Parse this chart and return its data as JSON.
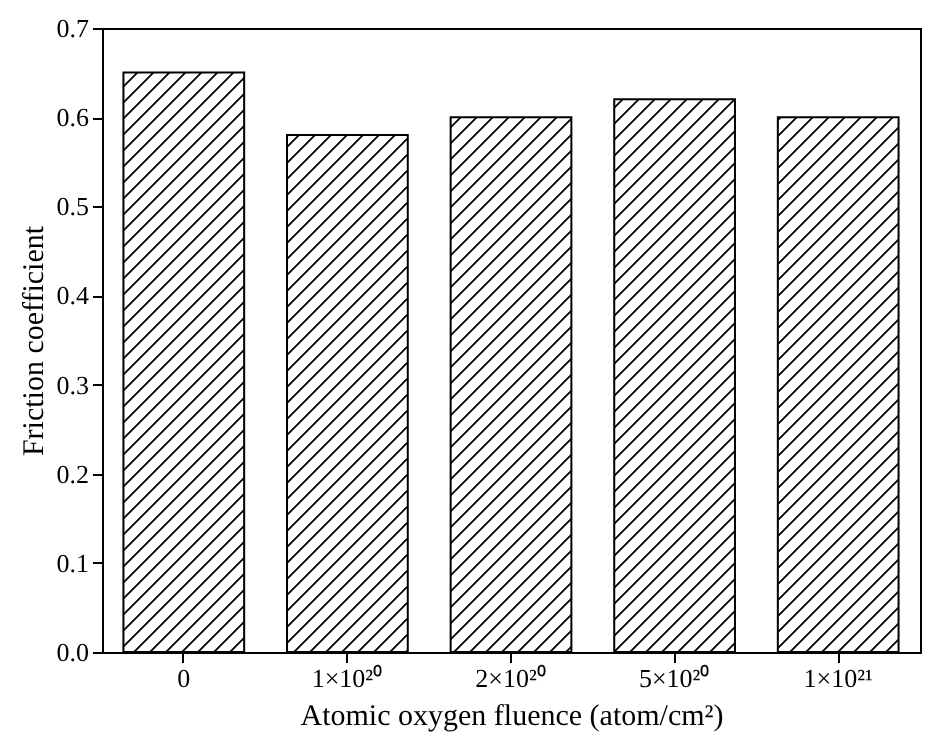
{
  "chart_data": {
    "type": "bar",
    "categories": [
      "0",
      "1×10²⁰",
      "2×10²⁰",
      "5×10²⁰",
      "1×10²¹"
    ],
    "values": [
      0.65,
      0.58,
      0.6,
      0.62,
      0.6
    ],
    "color": "#000000",
    "xlabel": "Atomic oxygen fluence (atom/cm²)",
    "ylabel": "Friction coefficient",
    "ylim": [
      0,
      0.7
    ],
    "yticks": [
      {
        "value": 0,
        "label": "0.0"
      },
      0.1,
      0.2,
      0.3,
      0.4,
      0.5,
      0.6,
      0.7
    ],
    "grid": false
  }
}
